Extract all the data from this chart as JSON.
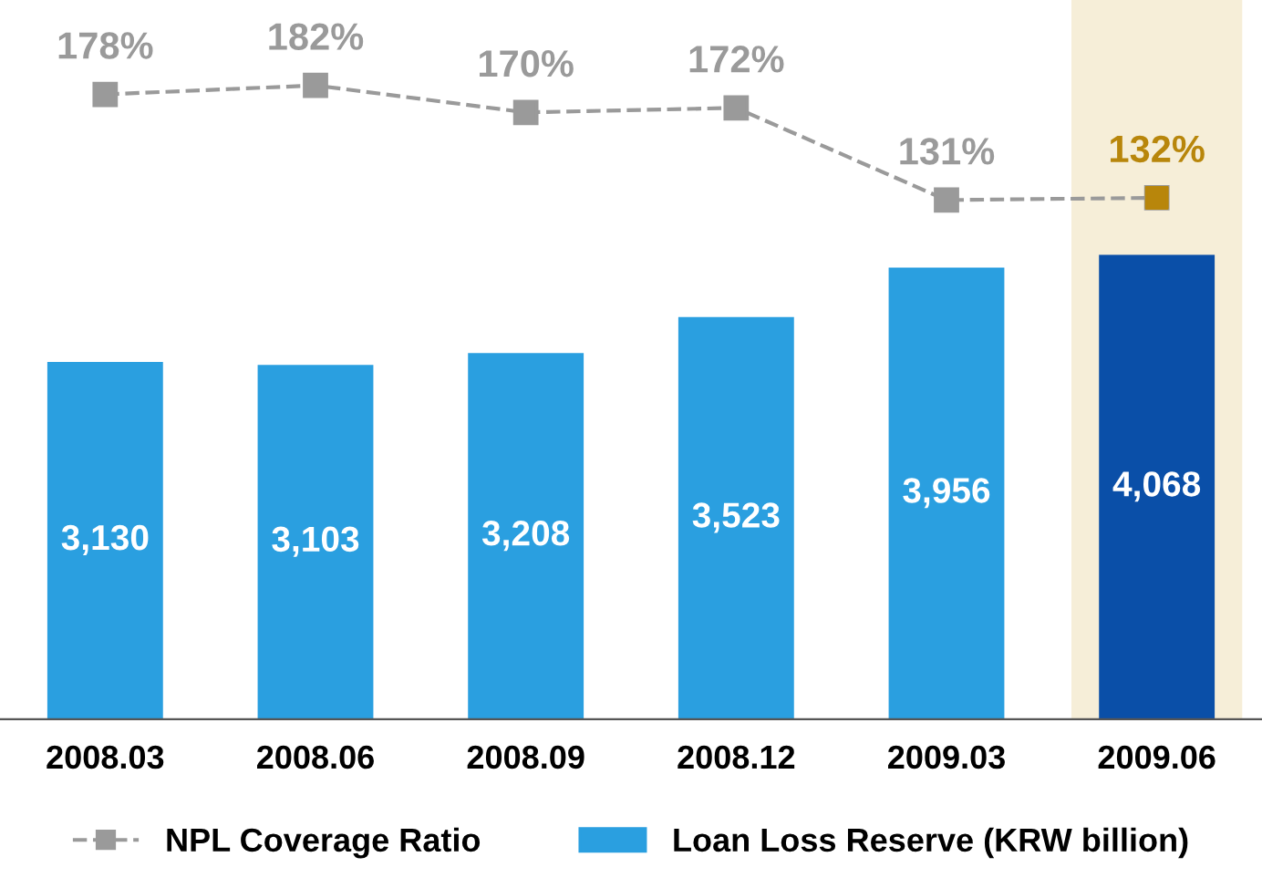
{
  "chart_data": {
    "type": "bar",
    "categories": [
      "2008.03",
      "2008.06",
      "2008.09",
      "2008.12",
      "2009.03",
      "2009.06"
    ],
    "series": [
      {
        "name": "Loan Loss Reserve (KRW billion)",
        "color": "#2a9fe0",
        "colors": [
          "#2a9fe0",
          "#2a9fe0",
          "#2a9fe0",
          "#2a9fe0",
          "#2a9fe0",
          "#0a4fa8"
        ],
        "values": [
          3130,
          3103,
          3208,
          3523,
          3956,
          4068
        ],
        "value_labels": [
          "3,130",
          "3,103",
          "3,208",
          "3,523",
          "3,956",
          "4,068"
        ]
      },
      {
        "name": "NPL Coverage Ratio",
        "type": "line",
        "axis": "y2",
        "color": "#9a9a9a",
        "colors": [
          "#9a9a9a",
          "#9a9a9a",
          "#9a9a9a",
          "#9a9a9a",
          "#9a9a9a",
          "#b8860b"
        ],
        "values": [
          178,
          182,
          170,
          172,
          131,
          132
        ],
        "value_labels": [
          "178%",
          "182%",
          "170%",
          "172%",
          "131%",
          "132%"
        ],
        "marker": "square",
        "line_style": "dashed"
      }
    ],
    "bands": [
      {
        "axis": "x",
        "from": "2009.06",
        "to": "2009.06",
        "color": "#f6eed8"
      }
    ],
    "ylim": [
      0,
      6300
    ],
    "y2lim": [
      -100,
      220
    ],
    "data_labels": true,
    "legend": "bottom",
    "grid": false,
    "tick_labels": "x"
  }
}
